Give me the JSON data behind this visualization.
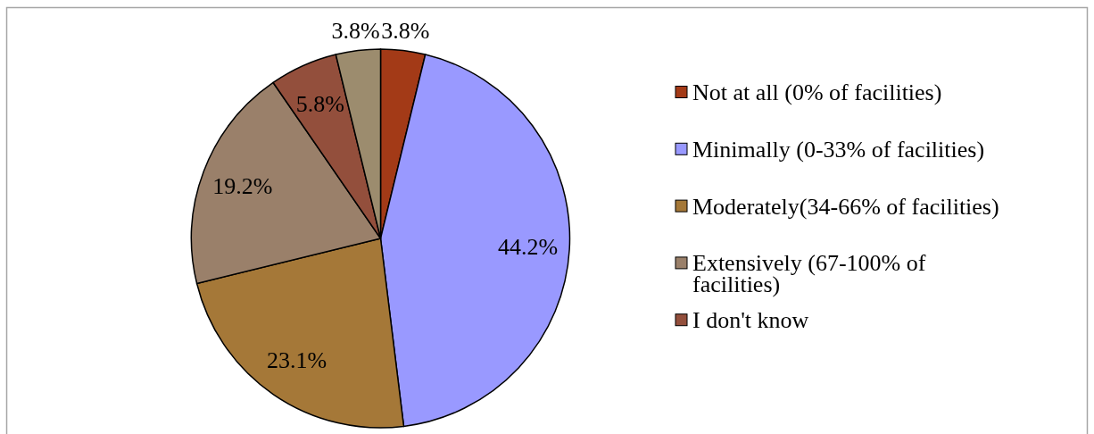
{
  "chart_data": {
    "type": "pie",
    "categories": [
      "Not at all (0% of facilities)",
      "Minimally (0-33% of facilities)",
      "Moderately(34-66% of facilities)",
      "Extensively (67-100% of facilities)",
      "I don't know",
      null
    ],
    "values": [
      3.8,
      44.2,
      23.1,
      19.2,
      5.8,
      3.8
    ],
    "value_labels": [
      "3.8%",
      "44.2%",
      "23.1%",
      "19.2%",
      "5.8%",
      "3.8%"
    ],
    "colors": [
      "#a33a17",
      "#9999ff",
      "#a57838",
      "#9a806a",
      "#934f3c",
      "#9c8c6e"
    ],
    "legend": "right"
  }
}
